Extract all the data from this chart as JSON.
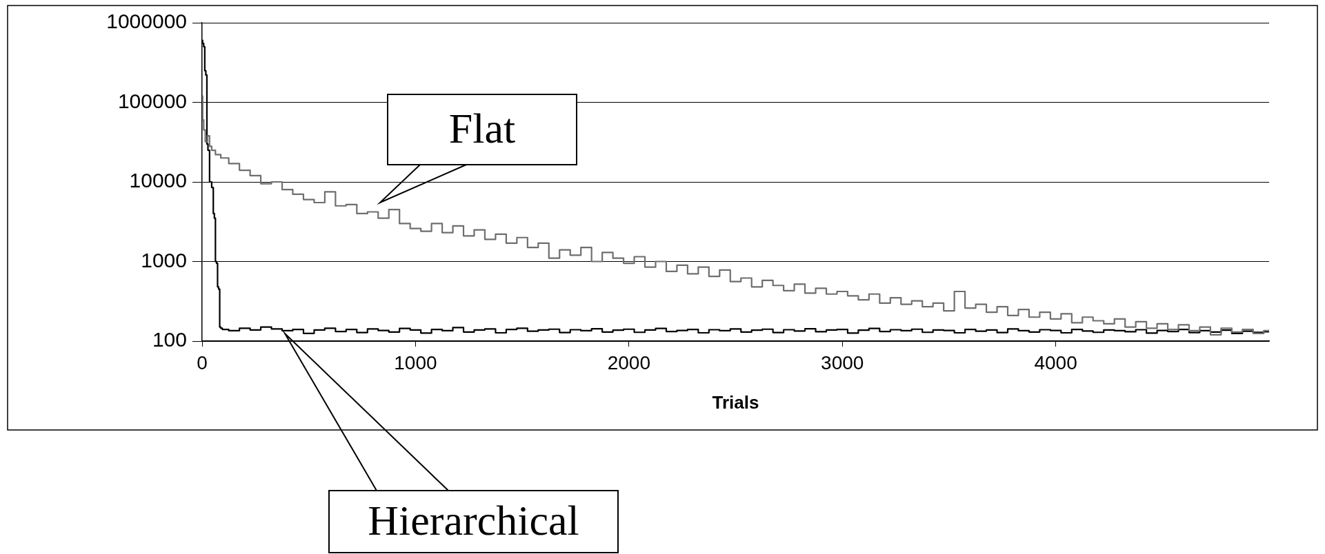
{
  "chart_data": {
    "type": "step",
    "xlabel": "Trials",
    "xlim": [
      0,
      5000
    ],
    "xticks": [
      0,
      1000,
      2000,
      3000,
      4000
    ],
    "ylim": [
      100,
      1000000
    ],
    "yticks": [
      100,
      1000,
      10000,
      100000,
      1000000
    ],
    "log": "y",
    "grid": "y",
    "legend": false,
    "series": [
      {
        "color": "#6e6e6e",
        "x": [
          0,
          5,
          10,
          20,
          30,
          40,
          50,
          75,
          100,
          150,
          200,
          250,
          300,
          350,
          400,
          450,
          500,
          550,
          600,
          650,
          700,
          750,
          800,
          850,
          900,
          950,
          1000,
          1050,
          1100,
          1150,
          1200,
          1250,
          1300,
          1350,
          1400,
          1450,
          1500,
          1550,
          1600,
          1650,
          1700,
          1750,
          1800,
          1850,
          1900,
          1950,
          2000,
          2050,
          2100,
          2150,
          2200,
          2250,
          2300,
          2350,
          2400,
          2450,
          2500,
          2550,
          2600,
          2650,
          2700,
          2750,
          2800,
          2850,
          2900,
          2950,
          3000,
          3050,
          3100,
          3150,
          3200,
          3250,
          3300,
          3350,
          3400,
          3450,
          3500,
          3550,
          3600,
          3650,
          3700,
          3750,
          3800,
          3850,
          3900,
          3950,
          4000,
          4050,
          4100,
          4150,
          4200,
          4250,
          4300,
          4350,
          4400,
          4450,
          4500,
          4550,
          4600,
          4650,
          4700,
          4750,
          4800,
          4850,
          4900,
          4950,
          5000
        ],
        "values": [
          120000,
          60000,
          45000,
          32000,
          38000,
          28000,
          25000,
          22000,
          20000,
          17000,
          14000,
          12000,
          9500,
          10000,
          8000,
          7000,
          6000,
          5500,
          7500,
          5000,
          5200,
          4000,
          4200,
          3500,
          4500,
          3000,
          2600,
          2400,
          3000,
          2300,
          2800,
          2100,
          2500,
          1900,
          2200,
          1700,
          2000,
          1500,
          1700,
          1100,
          1400,
          1200,
          1500,
          1000,
          1300,
          1100,
          950,
          1150,
          850,
          1000,
          750,
          900,
          700,
          850,
          650,
          780,
          560,
          620,
          480,
          580,
          500,
          430,
          520,
          400,
          460,
          390,
          420,
          370,
          330,
          390,
          300,
          350,
          290,
          320,
          270,
          300,
          240,
          420,
          260,
          290,
          230,
          270,
          210,
          250,
          200,
          230,
          190,
          220,
          170,
          200,
          180,
          165,
          190,
          150,
          175,
          145,
          165,
          140,
          160,
          135,
          150,
          120,
          145,
          130,
          140,
          125,
          135
        ]
      },
      {
        "color": "#000000",
        "x": [
          0,
          5,
          10,
          15,
          20,
          25,
          30,
          40,
          50,
          55,
          60,
          65,
          70,
          75,
          80,
          85,
          90,
          100,
          150,
          200,
          250,
          300,
          350,
          400,
          450,
          500,
          550,
          600,
          650,
          700,
          750,
          800,
          850,
          900,
          950,
          1000,
          1050,
          1100,
          1150,
          1200,
          1250,
          1300,
          1350,
          1400,
          1450,
          1500,
          1550,
          1600,
          1650,
          1700,
          1750,
          1800,
          1850,
          1900,
          1950,
          2000,
          2050,
          2100,
          2150,
          2200,
          2250,
          2300,
          2350,
          2400,
          2450,
          2500,
          2550,
          2600,
          2650,
          2700,
          2750,
          2800,
          2850,
          2900,
          2950,
          3000,
          3050,
          3100,
          3150,
          3200,
          3250,
          3300,
          3350,
          3400,
          3450,
          3500,
          3550,
          3600,
          3650,
          3700,
          3750,
          3800,
          3850,
          3900,
          3950,
          4000,
          4050,
          4100,
          4150,
          4200,
          4250,
          4300,
          4350,
          4400,
          4450,
          4500,
          4550,
          4600,
          4650,
          4700,
          4750,
          4800,
          4850,
          4900,
          4950,
          5000
        ],
        "values": [
          600000,
          550000,
          500000,
          250000,
          220000,
          30000,
          25000,
          10000,
          8500,
          4000,
          3500,
          1000,
          950,
          480,
          450,
          150,
          145,
          140,
          135,
          145,
          138,
          150,
          142,
          135,
          140,
          125,
          138,
          145,
          132,
          140,
          128,
          142,
          136,
          130,
          144,
          138,
          126,
          140,
          135,
          148,
          130,
          138,
          142,
          127,
          140,
          145,
          133,
          138,
          141,
          128,
          139,
          135,
          143,
          130,
          137,
          141,
          129,
          138,
          144,
          132,
          136,
          140,
          127,
          139,
          135,
          142,
          130,
          137,
          141,
          128,
          139,
          134,
          143,
          131,
          138,
          140,
          126,
          137,
          144,
          132,
          139,
          135,
          141,
          129,
          138,
          136,
          127,
          140,
          133,
          138,
          128,
          142,
          135,
          130,
          139,
          136,
          127,
          140,
          134,
          129,
          138,
          135,
          131,
          139,
          126,
          136,
          132,
          140,
          128,
          135,
          130,
          137,
          125,
          133,
          129,
          131
        ]
      }
    ],
    "annotations": [
      "Flat",
      "Hierarchical"
    ]
  }
}
